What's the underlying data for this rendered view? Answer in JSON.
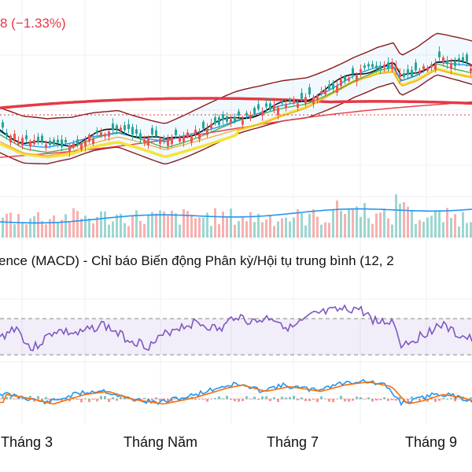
{
  "header": {
    "price_change_label": "8 (−1.33%)"
  },
  "panels": {
    "macd_title": "ence (MACD) - Chỉ báo Biến động Phân kỳ/Hội tụ trung bình (12, 2"
  },
  "x_axis": {
    "labels": [
      "Tháng 3",
      "Tháng Năm",
      "Tháng 7",
      "Tháng 9"
    ]
  },
  "colors": {
    "up": "#26a69a",
    "down": "#ef5350",
    "ma_fast": "#111111",
    "ma_blue": "#2196f3",
    "ma_green": "#4caf50",
    "ma_yellow": "#f5e33a",
    "ma_orange": "#f4a52a",
    "ma_red": "#e53945",
    "bollinger": "#8b1a1a",
    "volume_ma": "#2196f3",
    "rsi": "#7e57c2",
    "macd": "#2196f3",
    "signal": "#ff6d00"
  },
  "chart_data": [
    {
      "type": "line",
      "panel": "price",
      "x": [
        "Tháng 3",
        "Tháng Năm",
        "Tháng 7",
        "Tháng 9"
      ],
      "series": [
        {
          "values": [
            0.55,
            0.6,
            0.78,
            1.0
          ]
        }
      ]
    },
    {
      "type": "bar",
      "panel": "volume"
    },
    {
      "type": "line",
      "panel": "rsi",
      "levels": [
        70,
        30
      ]
    },
    {
      "type": "line",
      "panel": "macd"
    }
  ]
}
